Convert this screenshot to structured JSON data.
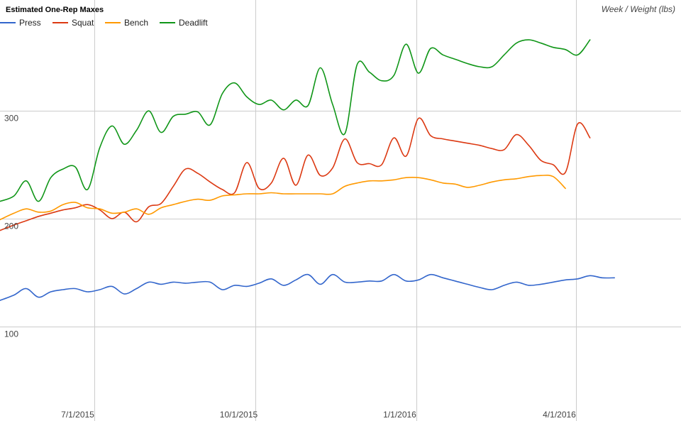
{
  "chart_data": {
    "type": "line",
    "title": "Estimated One-Rep Maxes",
    "axis_title": "Week / Weight (lbs)",
    "legend_position": "top-left",
    "grid": true,
    "xlim": [
      "2015-05-08",
      "2016-05-31"
    ],
    "ylim": [
      12,
      403
    ],
    "y_ticks": [
      {
        "value": 100,
        "label": "100"
      },
      {
        "value": 200,
        "label": "200"
      },
      {
        "value": 300,
        "label": "300"
      }
    ],
    "x_ticks": [
      {
        "date": "2015-07-01",
        "label": "7/1/2015"
      },
      {
        "date": "2015-10-01",
        "label": "10/1/2015"
      },
      {
        "date": "2016-01-01",
        "label": "1/1/2016"
      },
      {
        "date": "2016-04-01",
        "label": "4/1/2016"
      }
    ],
    "series": [
      {
        "name": "Press",
        "color": "#3366cc",
        "points": [
          [
            "2015-05-08",
            124
          ],
          [
            "2015-05-16",
            129
          ],
          [
            "2015-05-23",
            135
          ],
          [
            "2015-05-30",
            127
          ],
          [
            "2015-06-06",
            132
          ],
          [
            "2015-06-13",
            134
          ],
          [
            "2015-06-20",
            135
          ],
          [
            "2015-06-27",
            132
          ],
          [
            "2015-07-04",
            134
          ],
          [
            "2015-07-11",
            137
          ],
          [
            "2015-07-18",
            130
          ],
          [
            "2015-07-25",
            135
          ],
          [
            "2015-08-01",
            141
          ],
          [
            "2015-08-08",
            139
          ],
          [
            "2015-08-15",
            141
          ],
          [
            "2015-08-22",
            140
          ],
          [
            "2015-08-29",
            141
          ],
          [
            "2015-09-05",
            141
          ],
          [
            "2015-09-12",
            134
          ],
          [
            "2015-09-19",
            138
          ],
          [
            "2015-09-26",
            137
          ],
          [
            "2015-10-03",
            140
          ],
          [
            "2015-10-10",
            144
          ],
          [
            "2015-10-17",
            138
          ],
          [
            "2015-10-24",
            143
          ],
          [
            "2015-10-31",
            148
          ],
          [
            "2015-11-07",
            139
          ],
          [
            "2015-11-14",
            148
          ],
          [
            "2015-11-21",
            141
          ],
          [
            "2015-11-28",
            141
          ],
          [
            "2015-12-05",
            142
          ],
          [
            "2015-12-12",
            142
          ],
          [
            "2015-12-19",
            148
          ],
          [
            "2015-12-26",
            142
          ],
          [
            "2016-01-02",
            143
          ],
          [
            "2016-01-09",
            148
          ],
          [
            "2016-01-16",
            145
          ],
          [
            "2016-01-23",
            142
          ],
          [
            "2016-01-30",
            139
          ],
          [
            "2016-02-06",
            136
          ],
          [
            "2016-02-13",
            134
          ],
          [
            "2016-02-20",
            138
          ],
          [
            "2016-02-27",
            141
          ],
          [
            "2016-03-05",
            138
          ],
          [
            "2016-03-12",
            139
          ],
          [
            "2016-03-19",
            141
          ],
          [
            "2016-03-26",
            143
          ],
          [
            "2016-04-02",
            144
          ],
          [
            "2016-04-09",
            147
          ],
          [
            "2016-04-16",
            145
          ],
          [
            "2016-04-23",
            145
          ]
        ]
      },
      {
        "name": "Squat",
        "color": "#dc3912",
        "points": [
          [
            "2015-05-08",
            189
          ],
          [
            "2015-05-16",
            194
          ],
          [
            "2015-05-23",
            198
          ],
          [
            "2015-05-30",
            202
          ],
          [
            "2015-06-06",
            205
          ],
          [
            "2015-06-13",
            208
          ],
          [
            "2015-06-20",
            210
          ],
          [
            "2015-06-27",
            213
          ],
          [
            "2015-07-04",
            208
          ],
          [
            "2015-07-11",
            200
          ],
          [
            "2015-07-18",
            206
          ],
          [
            "2015-07-25",
            197
          ],
          [
            "2015-08-01",
            211
          ],
          [
            "2015-08-08",
            214
          ],
          [
            "2015-08-15",
            230
          ],
          [
            "2015-08-22",
            246
          ],
          [
            "2015-08-29",
            242
          ],
          [
            "2015-09-05",
            234
          ],
          [
            "2015-09-12",
            227
          ],
          [
            "2015-09-19",
            224
          ],
          [
            "2015-09-26",
            252
          ],
          [
            "2015-10-03",
            228
          ],
          [
            "2015-10-10",
            233
          ],
          [
            "2015-10-17",
            256
          ],
          [
            "2015-10-24",
            231
          ],
          [
            "2015-10-31",
            259
          ],
          [
            "2015-11-07",
            240
          ],
          [
            "2015-11-14",
            247
          ],
          [
            "2015-11-21",
            274
          ],
          [
            "2015-11-28",
            252
          ],
          [
            "2015-12-05",
            251
          ],
          [
            "2015-12-12",
            250
          ],
          [
            "2015-12-19",
            275
          ],
          [
            "2015-12-26",
            258
          ],
          [
            "2016-01-02",
            293
          ],
          [
            "2016-01-09",
            277
          ],
          [
            "2016-01-16",
            274
          ],
          [
            "2016-01-23",
            272
          ],
          [
            "2016-01-30",
            270
          ],
          [
            "2016-02-06",
            268
          ],
          [
            "2016-02-13",
            265
          ],
          [
            "2016-02-20",
            264
          ],
          [
            "2016-02-27",
            278
          ],
          [
            "2016-03-05",
            268
          ],
          [
            "2016-03-12",
            254
          ],
          [
            "2016-03-19",
            250
          ],
          [
            "2016-03-26",
            243
          ],
          [
            "2016-04-02",
            288
          ],
          [
            "2016-04-09",
            275
          ]
        ]
      },
      {
        "name": "Bench",
        "color": "#ff9900",
        "points": [
          [
            "2015-05-08",
            199
          ],
          [
            "2015-05-16",
            205
          ],
          [
            "2015-05-23",
            209
          ],
          [
            "2015-05-30",
            206
          ],
          [
            "2015-06-06",
            207
          ],
          [
            "2015-06-13",
            213
          ],
          [
            "2015-06-20",
            215
          ],
          [
            "2015-06-27",
            210
          ],
          [
            "2015-07-04",
            209
          ],
          [
            "2015-07-11",
            205
          ],
          [
            "2015-07-18",
            206
          ],
          [
            "2015-07-25",
            209
          ],
          [
            "2015-08-01",
            204
          ],
          [
            "2015-08-08",
            210
          ],
          [
            "2015-08-15",
            213
          ],
          [
            "2015-08-22",
            216
          ],
          [
            "2015-08-29",
            218
          ],
          [
            "2015-09-05",
            217
          ],
          [
            "2015-09-12",
            221
          ],
          [
            "2015-09-19",
            222
          ],
          [
            "2015-09-26",
            223
          ],
          [
            "2015-10-03",
            223
          ],
          [
            "2015-10-10",
            224
          ],
          [
            "2015-10-17",
            223
          ],
          [
            "2015-10-24",
            223
          ],
          [
            "2015-10-31",
            223
          ],
          [
            "2015-11-07",
            223
          ],
          [
            "2015-11-14",
            223
          ],
          [
            "2015-11-21",
            230
          ],
          [
            "2015-11-28",
            233
          ],
          [
            "2015-12-05",
            235
          ],
          [
            "2015-12-12",
            235
          ],
          [
            "2015-12-19",
            236
          ],
          [
            "2015-12-26",
            238
          ],
          [
            "2016-01-02",
            238
          ],
          [
            "2016-01-09",
            236
          ],
          [
            "2016-01-16",
            233
          ],
          [
            "2016-01-23",
            232
          ],
          [
            "2016-01-30",
            229
          ],
          [
            "2016-02-06",
            231
          ],
          [
            "2016-02-13",
            234
          ],
          [
            "2016-02-20",
            236
          ],
          [
            "2016-02-27",
            237
          ],
          [
            "2016-03-05",
            239
          ],
          [
            "2016-03-12",
            240
          ],
          [
            "2016-03-19",
            239
          ],
          [
            "2016-03-26",
            228
          ]
        ]
      },
      {
        "name": "Deadlift",
        "color": "#109618",
        "points": [
          [
            "2015-05-08",
            216
          ],
          [
            "2015-05-16",
            221
          ],
          [
            "2015-05-23",
            235
          ],
          [
            "2015-05-30",
            216
          ],
          [
            "2015-06-06",
            238
          ],
          [
            "2015-06-13",
            246
          ],
          [
            "2015-06-20",
            248
          ],
          [
            "2015-06-27",
            227
          ],
          [
            "2015-07-04",
            266
          ],
          [
            "2015-07-11",
            286
          ],
          [
            "2015-07-18",
            269
          ],
          [
            "2015-07-25",
            282
          ],
          [
            "2015-08-01",
            300
          ],
          [
            "2015-08-08",
            280
          ],
          [
            "2015-08-15",
            295
          ],
          [
            "2015-08-22",
            297
          ],
          [
            "2015-08-29",
            299
          ],
          [
            "2015-09-05",
            287
          ],
          [
            "2015-09-12",
            316
          ],
          [
            "2015-09-19",
            326
          ],
          [
            "2015-09-26",
            313
          ],
          [
            "2015-10-03",
            306
          ],
          [
            "2015-10-10",
            310
          ],
          [
            "2015-10-17",
            301
          ],
          [
            "2015-10-24",
            310
          ],
          [
            "2015-10-31",
            305
          ],
          [
            "2015-11-07",
            340
          ],
          [
            "2015-11-14",
            306
          ],
          [
            "2015-11-21",
            279
          ],
          [
            "2015-11-28",
            343
          ],
          [
            "2015-12-05",
            336
          ],
          [
            "2015-12-12",
            328
          ],
          [
            "2015-12-19",
            333
          ],
          [
            "2015-12-26",
            362
          ],
          [
            "2016-01-02",
            335
          ],
          [
            "2016-01-09",
            358
          ],
          [
            "2016-01-16",
            352
          ],
          [
            "2016-01-23",
            348
          ],
          [
            "2016-01-30",
            344
          ],
          [
            "2016-02-06",
            341
          ],
          [
            "2016-02-13",
            341
          ],
          [
            "2016-02-20",
            352
          ],
          [
            "2016-02-27",
            363
          ],
          [
            "2016-03-05",
            366
          ],
          [
            "2016-03-12",
            363
          ],
          [
            "2016-03-19",
            359
          ],
          [
            "2016-03-26",
            357
          ],
          [
            "2016-04-02",
            352
          ],
          [
            "2016-04-09",
            366
          ]
        ]
      }
    ]
  }
}
